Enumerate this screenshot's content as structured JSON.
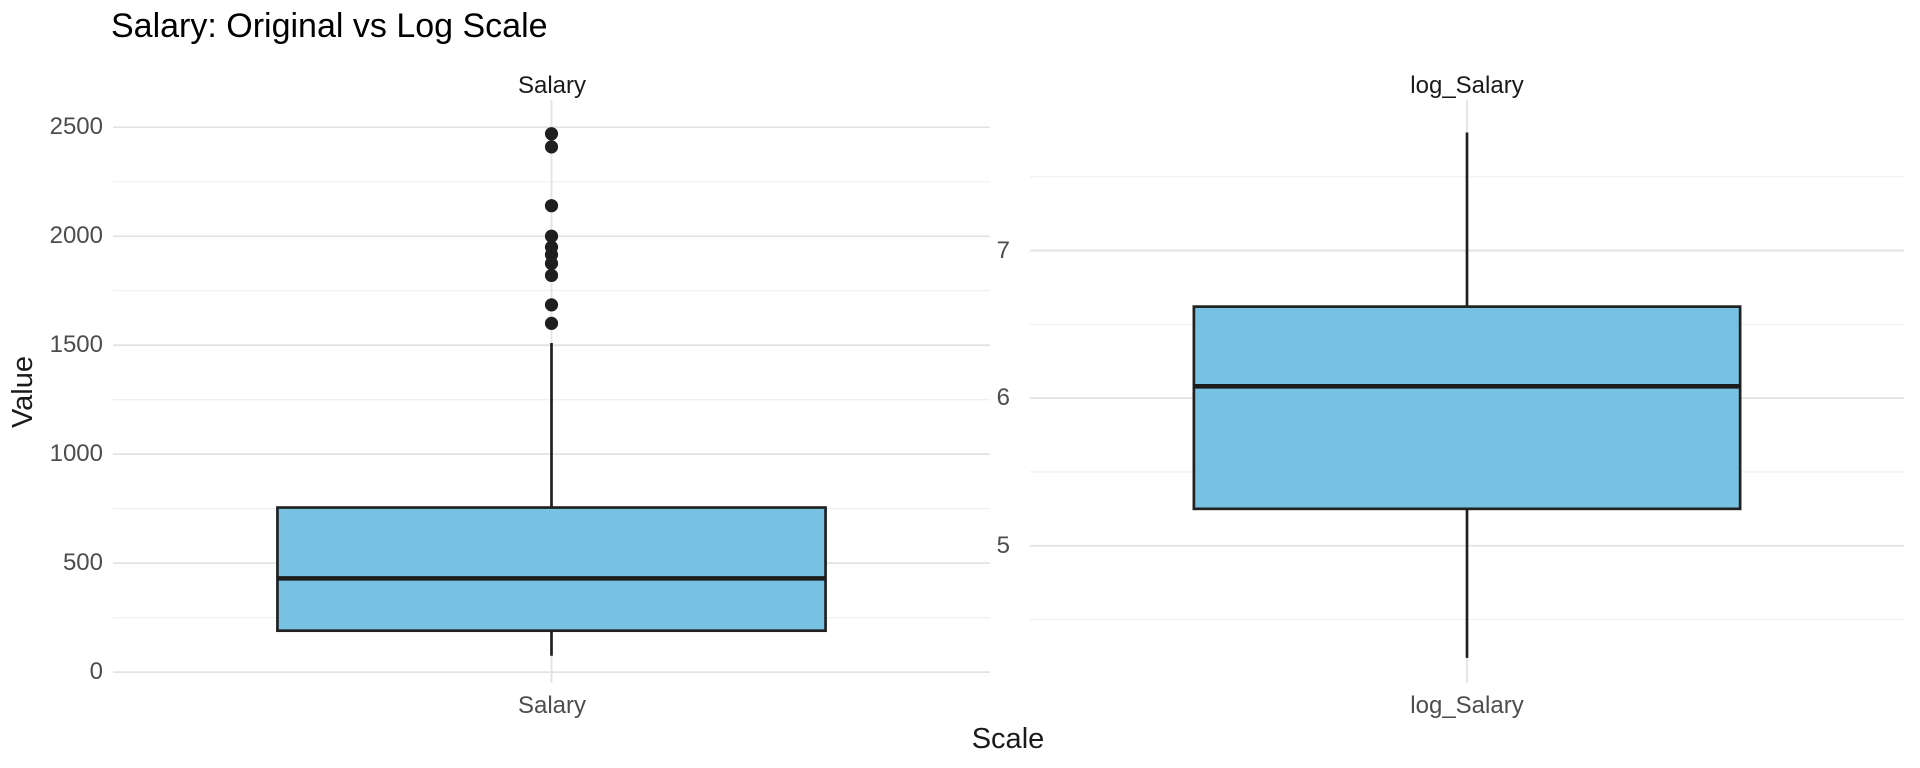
{
  "title": "Salary: Original vs Log Scale",
  "axes": {
    "y_title": "Value",
    "x_title": "Scale"
  },
  "colors": {
    "background": "#ffffff",
    "box_fill": "#77C2E2",
    "box_border": "#212121",
    "median_line": "#1c1c1c",
    "whisker": "#212121",
    "outlier": "#1f1f1f",
    "grid_major": "#e3e3e3",
    "grid_minor": "#f0f0f0",
    "title_text": "#000000",
    "axis_title_text": "#1a1a1a",
    "tick_text": "#4d4d4d",
    "strip_text": "#1a1a1a"
  },
  "chart_data": {
    "type": "boxplot",
    "title": "Salary: Original vs Log Scale",
    "xlabel": "Scale",
    "ylabel": "Value",
    "grid": "major-and-minor",
    "legend": "none",
    "facets": [
      {
        "label": "Salary",
        "x_tick": "Salary",
        "y_ticks": [
          0,
          500,
          1000,
          1500,
          2000,
          2500
        ],
        "y_minor": [
          250,
          750,
          1250,
          1750,
          2250
        ],
        "ylim": [
          -50,
          2625
        ],
        "box": {
          "whisker_low": 75,
          "q1": 190,
          "median": 430,
          "q3": 755,
          "whisker_high": 1510
        },
        "outliers": [
          1600,
          1685,
          1820,
          1875,
          1915,
          1950,
          2000,
          2140,
          2410,
          2470
        ]
      },
      {
        "label": "log_Salary",
        "x_tick": "log_Salary",
        "y_ticks": [
          5,
          6,
          7
        ],
        "y_minor": [
          4.5,
          5.5,
          6.5,
          7.5
        ],
        "ylim": [
          4.07,
          8.02
        ],
        "box": {
          "whisker_low": 4.24,
          "q1": 5.25,
          "median": 6.08,
          "q3": 6.62,
          "whisker_high": 7.8
        },
        "outliers": []
      }
    ]
  }
}
